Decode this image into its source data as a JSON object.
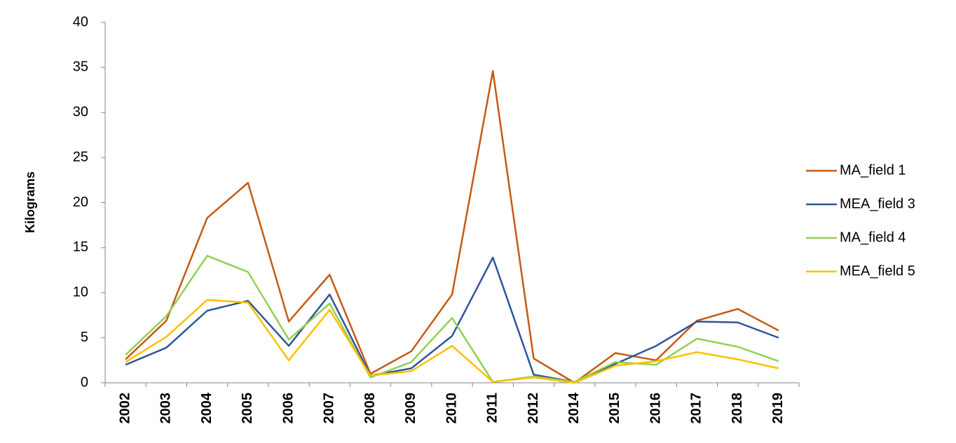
{
  "chart_data": {
    "type": "line",
    "y_label": "Kilograms",
    "categories": [
      "2002",
      "2003",
      "2004",
      "2005",
      "2006",
      "2007",
      "2008",
      "2009",
      "2010",
      "2011",
      "2012",
      "2014",
      "2015",
      "2016",
      "2017",
      "2018",
      "2019"
    ],
    "series": [
      {
        "name": "MA_field 1",
        "color": "#c55a11",
        "values": [
          2.6,
          6.9,
          18.3,
          22.2,
          6.8,
          12.0,
          1.0,
          3.5,
          9.8,
          34.6,
          2.7,
          0,
          3.3,
          2.5,
          6.9,
          8.2,
          5.8
        ]
      },
      {
        "name": "MEA_field 3",
        "color": "#2f5597",
        "values": [
          2.0,
          3.9,
          8.0,
          9.1,
          4.1,
          9.8,
          0.8,
          1.6,
          5.2,
          13.9,
          0.9,
          0.1,
          2.1,
          4.1,
          6.8,
          6.7,
          5.0
        ]
      },
      {
        "name": "MA_field 4",
        "color": "#92d050",
        "values": [
          3.1,
          7.4,
          14.1,
          12.3,
          4.8,
          8.8,
          0.6,
          2.3,
          7.2,
          0.1,
          0.7,
          0.1,
          2.3,
          2.0,
          4.9,
          4.0,
          2.4
        ]
      },
      {
        "name": "MEA_field 5",
        "color": "#ffc000",
        "values": [
          2.3,
          5.1,
          9.2,
          8.9,
          2.5,
          8.1,
          0.8,
          1.3,
          4.1,
          0.1,
          0.6,
          0,
          1.9,
          2.4,
          3.4,
          2.6,
          1.6
        ]
      }
    ],
    "ylim": [
      0,
      40
    ],
    "yticks": [
      0,
      5,
      10,
      15,
      20,
      25,
      30,
      35,
      40
    ],
    "legend": "right"
  }
}
